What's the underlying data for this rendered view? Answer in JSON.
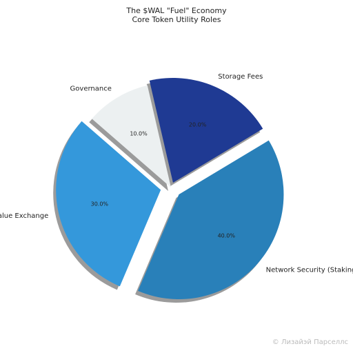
{
  "chart_data": {
    "type": "pie",
    "title": "The $WAL \"Fuel\" Economy",
    "subtitle": "Core Token Utility Roles",
    "categories": [
      "Storage Fees",
      "Network Security (Staking)",
      "Value Exchange",
      "Governance"
    ],
    "values": [
      20,
      40,
      30,
      10
    ],
    "value_labels": [
      "20.0%",
      "40.0%",
      "30.0%",
      "10.0%"
    ],
    "colors": [
      "#1f3a93",
      "#2980b9",
      "#3498db",
      "#ecf0f1"
    ],
    "explode": [
      0.05,
      0.1,
      0.1,
      0
    ],
    "start_angle": 103,
    "counterclock": false,
    "shadow": true
  },
  "watermark": "© Лизайэй Парселлс"
}
